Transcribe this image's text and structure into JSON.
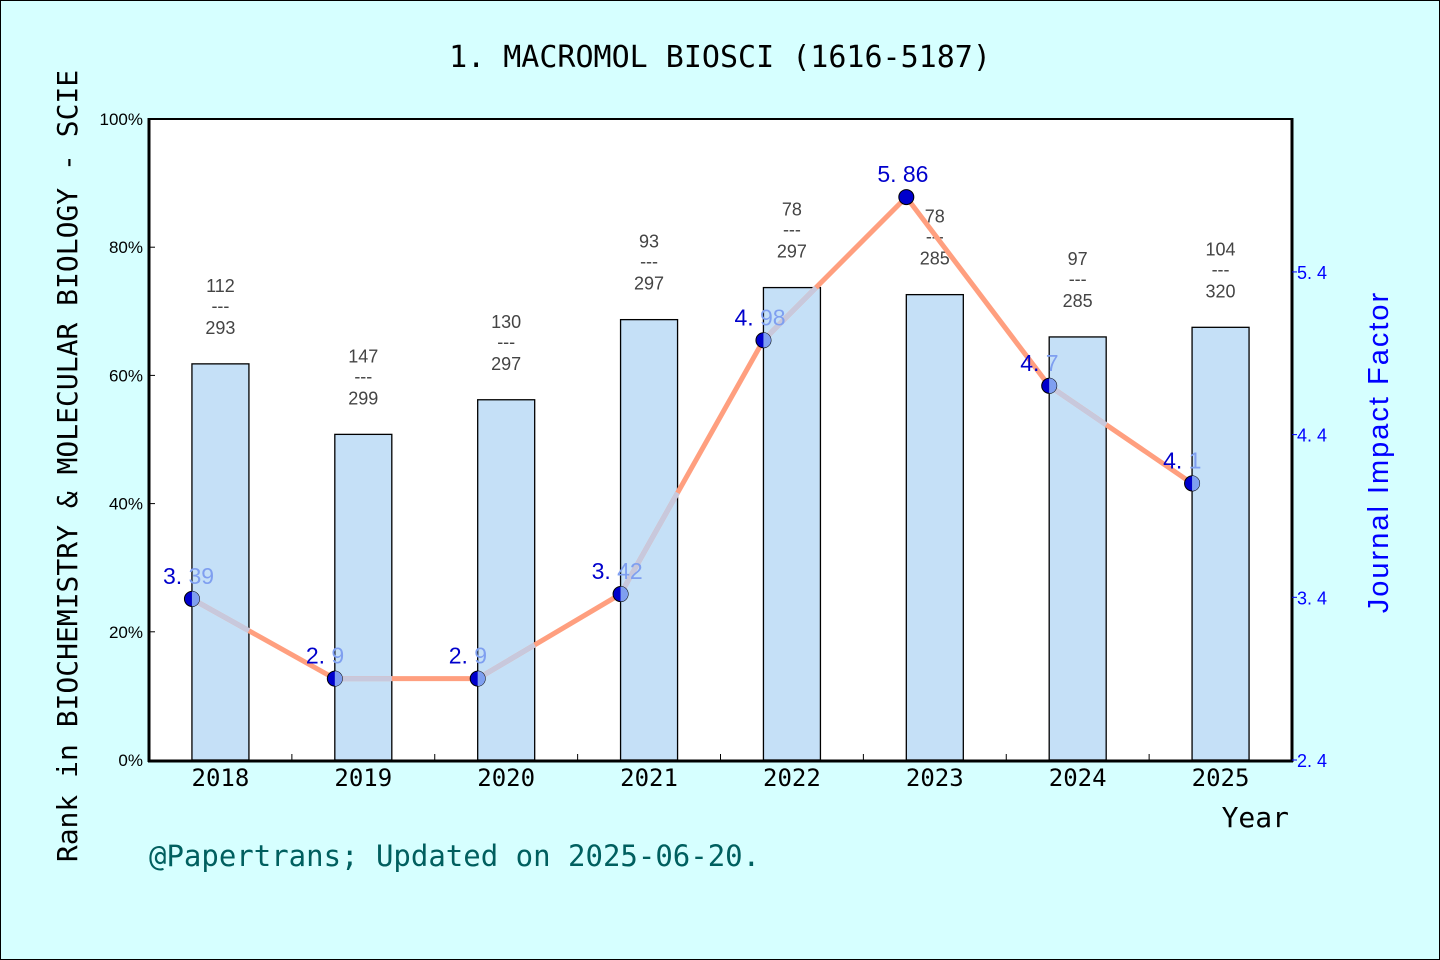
{
  "chart": {
    "title": "1. MACROMOL BIOSCI (1616-5187)",
    "ylabel_left": "Rank in BIOCHEMISTRY & MOLECULAR BIOLOGY - SCIE",
    "ylabel_right": "Journal Impact Factor",
    "xlabel": "Year",
    "footer": "@Papertrans; Updated on 2025-06-20.",
    "left_ticks": [
      "0%",
      "20%",
      "40%",
      "60%",
      "80%",
      "100%"
    ],
    "right_ticks": [
      "2.4",
      "3.4",
      "4.4",
      "5.4"
    ],
    "colors": {
      "background": "#d6ffff",
      "plot_background": "#ffffff",
      "bar_fill": "#c5e0f7",
      "line": "#ff9f7f",
      "line_overlap": "#c8c8dc",
      "marker": "#0000cc",
      "if_label": "#0000cc",
      "right_axis": "#0000ff",
      "footer": "#005f5f"
    }
  },
  "chart_data": {
    "type": "bar+line",
    "title": "1. MACROMOL BIOSCI (1616-5187)",
    "xlabel": "Year",
    "ylabel": "Rank in BIOCHEMISTRY & MOLECULAR BIOLOGY - SCIE",
    "ylabel_right": "Journal Impact Factor",
    "categories": [
      "2018",
      "2019",
      "2020",
      "2021",
      "2022",
      "2023",
      "2024",
      "2025"
    ],
    "series": [
      {
        "name": "Rank percentile (bar)",
        "axis": "left",
        "type": "bar",
        "rank": [
          112,
          147,
          130,
          93,
          78,
          78,
          97,
          104
        ],
        "total": [
          293,
          299,
          297,
          297,
          297,
          285,
          285,
          320
        ],
        "rank_labels": [
          "112/293",
          "147/299",
          "130/297",
          "93/297",
          "78/297",
          "78/285",
          "97/285",
          "104/320"
        ],
        "values": [
          61.8,
          50.8,
          56.2,
          68.7,
          73.7,
          72.6,
          66.0,
          67.5
        ]
      },
      {
        "name": "Journal Impact Factor",
        "axis": "right",
        "type": "line",
        "values": [
          3.39,
          2.9,
          2.9,
          3.42,
          4.98,
          5.86,
          4.7,
          4.1
        ],
        "labels": [
          "3.39",
          "2.9",
          "2.9",
          "3.42",
          "4.98",
          "5.86",
          "4.7",
          "4.1"
        ]
      }
    ],
    "ylim": [
      0,
      100
    ],
    "ylim_right": [
      2.4,
      6.34
    ],
    "left_ticks": [
      "0%",
      "20%",
      "40%",
      "60%",
      "80%",
      "100%"
    ],
    "right_ticks": [
      2.4,
      3.4,
      4.4,
      5.4
    ],
    "grid": false,
    "legend": "none",
    "annotation": "@Papertrans; Updated on 2025-06-20."
  }
}
